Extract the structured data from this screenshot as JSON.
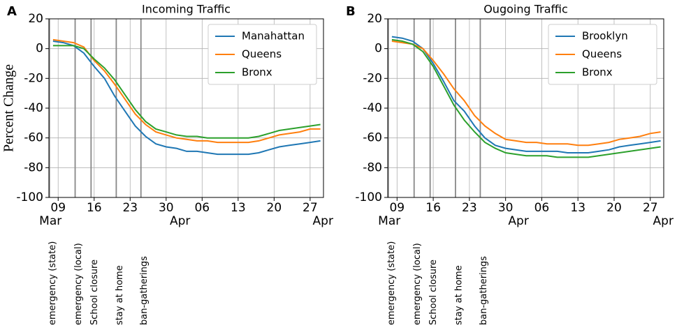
{
  "chart_data": [
    {
      "type": "line",
      "panel_label": "A",
      "title": "Incoming Traffic",
      "ylabel": "Percent Change",
      "x": [
        8,
        10,
        12,
        14,
        16,
        18,
        20,
        22,
        24,
        26,
        28,
        30,
        32,
        34,
        36,
        38,
        40,
        42,
        44,
        46,
        48,
        50,
        52,
        54,
        56,
        58,
        60
      ],
      "series": [
        {
          "name": "Manahattan",
          "color": "#1f77b4",
          "values": [
            5,
            4,
            2,
            -3,
            -12,
            -20,
            -32,
            -42,
            -52,
            -59,
            -64,
            -66,
            -67,
            -69,
            -69,
            -70,
            -71,
            -71,
            -71,
            -71,
            -70,
            -68,
            -66,
            -65,
            -64,
            -63,
            -62
          ]
        },
        {
          "name": "Queens",
          "color": "#ff7f0e",
          "values": [
            6,
            5,
            4,
            1,
            -8,
            -15,
            -24,
            -34,
            -44,
            -51,
            -56,
            -58,
            -60,
            -61,
            -62,
            -62,
            -63,
            -63,
            -63,
            -63,
            -62,
            -60,
            -58,
            -57,
            -56,
            -54,
            -54
          ]
        },
        {
          "name": "Bronx",
          "color": "#2ca02c",
          "values": [
            2,
            2,
            2,
            0,
            -7,
            -13,
            -21,
            -31,
            -41,
            -49,
            -54,
            -56,
            -58,
            -59,
            -59,
            -60,
            -60,
            -60,
            -60,
            -60,
            -59,
            -57,
            -55,
            -54,
            -53,
            -52,
            -51
          ]
        }
      ],
      "xlim": [
        7.2,
        60.6
      ],
      "ylim": [
        -100,
        20
      ],
      "xticks": [
        {
          "value": 9,
          "label": "09"
        },
        16,
        23,
        30,
        {
          "value": 37,
          "label": "06"
        },
        {
          "value": 44,
          "label": "13"
        },
        {
          "value": 51,
          "label": "20"
        },
        {
          "value": 58,
          "label": "27"
        }
      ],
      "month_labels": [
        {
          "value": 7.5,
          "label": "Mar"
        },
        {
          "value": 32.7,
          "label": "Apr"
        },
        {
          "value": 60.5,
          "label": "Apr"
        }
      ],
      "yticks": [
        -100,
        -80,
        -60,
        -40,
        -20,
        0,
        20
      ],
      "grid": true,
      "legend": "upper right",
      "events": [
        {
          "value": 7.3,
          "label": "emergency (state)"
        },
        {
          "value": 12.3,
          "label": "emergency (local)"
        },
        {
          "value": 15.4,
          "label": "School closure"
        },
        {
          "value": 20.3,
          "label": "stay at home"
        },
        {
          "value": 25.1,
          "label": "ban-gatherings"
        }
      ]
    },
    {
      "type": "line",
      "panel_label": "B",
      "title": "Ougoing Traffic",
      "x": [
        8,
        10,
        12,
        14,
        16,
        18,
        20,
        22,
        24,
        26,
        28,
        30,
        32,
        34,
        36,
        38,
        40,
        42,
        44,
        46,
        48,
        50,
        52,
        54,
        56,
        58,
        60
      ],
      "series": [
        {
          "name": "Brooklyn",
          "color": "#1f77b4",
          "values": [
            8,
            7,
            5,
            0,
            -10,
            -22,
            -35,
            -42,
            -52,
            -60,
            -65,
            -67,
            -68,
            -69,
            -69,
            -69,
            -69,
            -70,
            -70,
            -70,
            -69,
            -68,
            -66,
            -65,
            -64,
            -63,
            -62
          ]
        },
        {
          "name": "Queens",
          "color": "#ff7f0e",
          "values": [
            5,
            4,
            3,
            0,
            -8,
            -17,
            -27,
            -35,
            -45,
            -52,
            -57,
            -61,
            -62,
            -63,
            -63,
            -64,
            -64,
            -64,
            -65,
            -65,
            -64,
            -63,
            -61,
            -60,
            -59,
            -57,
            -56
          ]
        },
        {
          "name": "Bronx",
          "color": "#2ca02c",
          "values": [
            6,
            5,
            3,
            -2,
            -12,
            -25,
            -38,
            -48,
            -56,
            -63,
            -67,
            -70,
            -71,
            -72,
            -72,
            -72,
            -73,
            -73,
            -73,
            -73,
            -72,
            -71,
            -70,
            -69,
            -68,
            -67,
            -66
          ]
        }
      ],
      "xlim": [
        7.2,
        60.6
      ],
      "ylim": [
        -100,
        20
      ],
      "xticks": [
        {
          "value": 9,
          "label": "09"
        },
        16,
        23,
        30,
        {
          "value": 37,
          "label": "06"
        },
        {
          "value": 44,
          "label": "13"
        },
        {
          "value": 51,
          "label": "20"
        },
        {
          "value": 58,
          "label": "27"
        }
      ],
      "month_labels": [
        {
          "value": 7.5,
          "label": "Mar"
        },
        {
          "value": 32.5,
          "label": "Apr"
        },
        {
          "value": 60.5,
          "label": "Apr"
        }
      ],
      "yticks": [
        -100,
        -80,
        -60,
        -40,
        -20,
        0,
        20
      ],
      "grid": true,
      "legend": "upper right",
      "events": [
        {
          "value": 7.3,
          "label": "emergency (state)"
        },
        {
          "value": 12.3,
          "label": "emergency (local)"
        },
        {
          "value": 15.4,
          "label": "School closure"
        },
        {
          "value": 20.3,
          "label": "stay at home"
        },
        {
          "value": 25.1,
          "label": "ban-gatherings"
        }
      ]
    }
  ]
}
